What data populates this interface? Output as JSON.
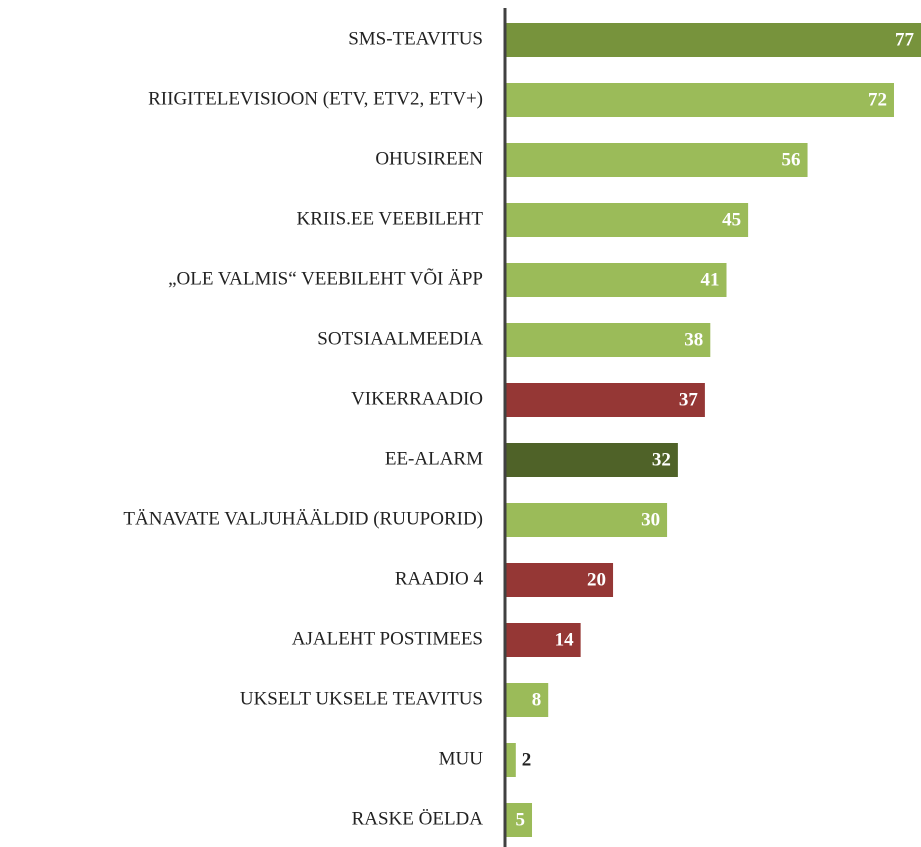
{
  "chart_data": {
    "type": "bar",
    "orientation": "horizontal",
    "categories": [
      "SMS-TEAVITUS",
      "RIIGITELEVISIOON (ETV, ETV2, ETV+)",
      "OHUSIREEN",
      "KRIIS.EE VEEBILEHT",
      "„OLE VALMIS“ VEEBILEHT VÕI ÄPP",
      "SOTSIAALMEEDIA",
      "VIKERRAADIO",
      "EE-ALARM",
      "TÄNAVATE VALJUHÄÄLDID (RUUPORID)",
      "RAADIO 4",
      "AJALEHT POSTIMEES",
      "UKSELT UKSELE TEAVITUS",
      "MUU",
      "RASKE ÖELDA"
    ],
    "values": [
      77,
      72,
      56,
      45,
      41,
      38,
      37,
      32,
      30,
      20,
      14,
      8,
      2,
      5
    ],
    "colors": [
      "#77933c",
      "#9bbb59",
      "#9bbb59",
      "#9bbb59",
      "#9bbb59",
      "#9bbb59",
      "#953735",
      "#4f6228",
      "#9bbb59",
      "#953735",
      "#953735",
      "#9bbb59",
      "#9bbb59",
      "#9bbb59"
    ]
  }
}
